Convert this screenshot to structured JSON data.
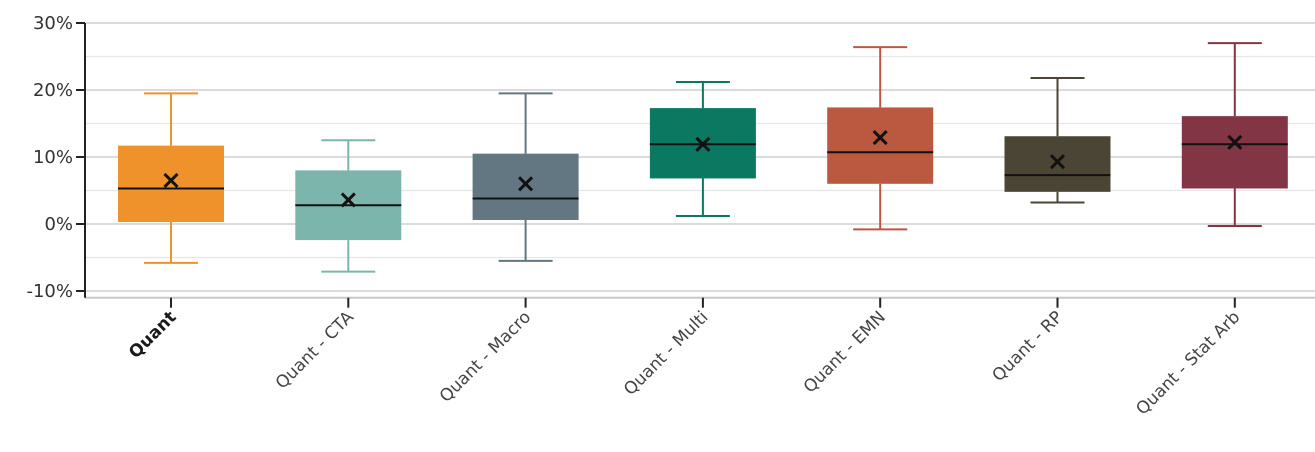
{
  "chart_data": {
    "type": "box",
    "title": "",
    "xlabel": "",
    "ylabel": "",
    "ylim": [
      -0.11,
      0.3
    ],
    "yticks": [
      {
        "value": -0.1,
        "label": "-10%"
      },
      {
        "value": 0.0,
        "label": "0%"
      },
      {
        "value": 0.1,
        "label": "10%"
      },
      {
        "value": 0.2,
        "label": "20%"
      },
      {
        "value": 0.3,
        "label": "30%"
      }
    ],
    "minor_gridlines": [
      -0.05,
      0.05,
      0.15,
      0.25
    ],
    "grid": true,
    "categories": [
      "Quant",
      "Quant - CTA",
      "Quant - Macro",
      "Quant - Multi",
      "Quant - EMN",
      "Quant - RP",
      "Quant - Stat Arb"
    ],
    "highlighted_category": "Quant",
    "series": [
      {
        "category": "Quant",
        "min": -0.058,
        "q1": 0.003,
        "median": 0.053,
        "q3": 0.117,
        "max": 0.195,
        "mean": 0.065,
        "color": "#F0922B"
      },
      {
        "category": "Quant - CTA",
        "min": -0.071,
        "q1": -0.024,
        "median": 0.028,
        "q3": 0.08,
        "max": 0.125,
        "mean": 0.036,
        "color": "#7BB5AB"
      },
      {
        "category": "Quant - Macro",
        "min": -0.055,
        "q1": 0.006,
        "median": 0.038,
        "q3": 0.105,
        "max": 0.195,
        "mean": 0.06,
        "color": "#627781"
      },
      {
        "category": "Quant - Multi",
        "min": 0.012,
        "q1": 0.068,
        "median": 0.119,
        "q3": 0.173,
        "max": 0.212,
        "mean": 0.119,
        "color": "#0B7861"
      },
      {
        "category": "Quant - EMN",
        "min": -0.008,
        "q1": 0.06,
        "median": 0.107,
        "q3": 0.174,
        "max": 0.264,
        "mean": 0.129,
        "color": "#BA5840"
      },
      {
        "category": "Quant - RP",
        "min": 0.032,
        "q1": 0.048,
        "median": 0.073,
        "q3": 0.131,
        "max": 0.218,
        "mean": 0.093,
        "color": "#4B4535"
      },
      {
        "category": "Quant - Stat Arb",
        "min": -0.003,
        "q1": 0.053,
        "median": 0.119,
        "q3": 0.161,
        "max": 0.27,
        "mean": 0.122,
        "color": "#823645"
      }
    ]
  }
}
